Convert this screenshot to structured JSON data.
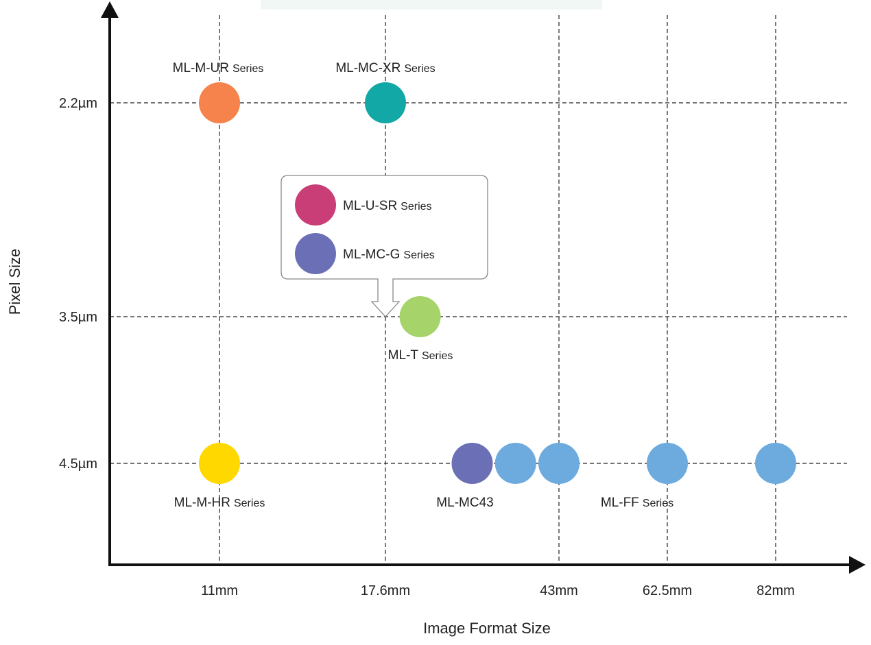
{
  "chart_data": {
    "type": "scatter",
    "xlabel": "Image Format Size",
    "ylabel": "Pixel Size",
    "x_ticks": [
      "11mm",
      "17.6mm",
      "43mm",
      "62.5mm",
      "82mm"
    ],
    "y_ticks": [
      "2.2µm",
      "3.5µm",
      "4.5µm"
    ],
    "colors": {
      "orange": "#F5834B",
      "teal": "#11A8A6",
      "green": "#A6D46A",
      "yellow": "#FFD800",
      "purple": "#6B6FB5",
      "blue": "#6DAADE",
      "magenta": "#C93E76"
    },
    "points": [
      {
        "series": "ML-M-UR Series",
        "x": "11mm",
        "y": "2.2µm",
        "color": "#F5834B"
      },
      {
        "series": "ML-MC-XR Series",
        "x": "17.6mm",
        "y": "2.2µm",
        "color": "#11A8A6"
      },
      {
        "series": "ML-T Series",
        "x": 1.2,
        "y": "3.5µm",
        "color": "#A6D46A"
      },
      {
        "series": "ML-M-HR Series",
        "x": "11mm",
        "y": "4.5µm",
        "color": "#FFD800"
      },
      {
        "series": "ML-MC43",
        "x": 1.5,
        "y": "4.5µm",
        "color": "#6B6FB5"
      },
      {
        "series": "ML-FF Series",
        "x": 1.75,
        "y": "4.5µm",
        "color": "#6DAADE"
      },
      {
        "series": "ML-FF Series",
        "x": "43mm",
        "y": "4.5µm",
        "color": "#6DAADE"
      },
      {
        "series": "ML-FF Series",
        "x": "62.5mm",
        "y": "4.5µm",
        "color": "#6DAADE"
      },
      {
        "series": "ML-FF Series",
        "x": "82mm",
        "y": "4.5µm",
        "color": "#6DAADE"
      }
    ],
    "labels": [
      {
        "name": "ML-M-UR",
        "suffix": "Series"
      },
      {
        "name": "ML-MC-XR",
        "suffix": "Series"
      },
      {
        "name": "ML-T",
        "suffix": "Series"
      },
      {
        "name": "ML-M-HR",
        "suffix": "Series"
      },
      {
        "name": "ML-MC43",
        "suffix": ""
      },
      {
        "name": "ML-FF",
        "suffix": "Series"
      }
    ],
    "callout": {
      "items": [
        {
          "name": "ML-U-SR",
          "suffix": "Series",
          "color": "#C93E76"
        },
        {
          "name": "ML-MC-G",
          "suffix": "Series",
          "color": "#6B6FB5"
        }
      ]
    }
  }
}
